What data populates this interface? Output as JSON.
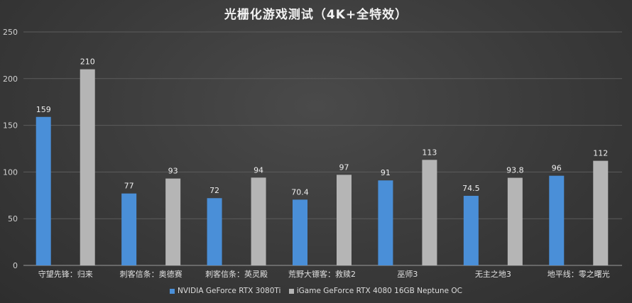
{
  "chart_data": {
    "type": "bar",
    "title": "光栅化游戏测试（4K+全特效）",
    "categories": [
      "守望先锋：归来",
      "刺客信条：奥德赛",
      "刺客信条：英灵殿",
      "荒野大镖客：救赎2",
      "巫师3",
      "无主之地3",
      "地平线：零之曙光"
    ],
    "series": [
      {
        "name": "NVIDIA GeForce RTX 3080Ti",
        "color": "#4a8fd8",
        "values": [
          159,
          77,
          72,
          70.4,
          91,
          74.5,
          96
        ],
        "labels": [
          "159",
          "77",
          "72",
          "70.4",
          "91",
          "74.5",
          "96"
        ]
      },
      {
        "name": "iGame GeForce RTX 4080 16GB Neptune OC",
        "color": "#b5b5b5",
        "values": [
          210,
          93,
          94,
          97,
          113,
          93.8,
          112
        ],
        "labels": [
          "210",
          "93",
          "94",
          "97",
          "113",
          "93.8",
          "112"
        ]
      }
    ],
    "yticks": [
      0,
      50,
      100,
      150,
      200,
      250
    ],
    "ylim": [
      0,
      250
    ],
    "grid": true,
    "legend_position": "bottom"
  }
}
